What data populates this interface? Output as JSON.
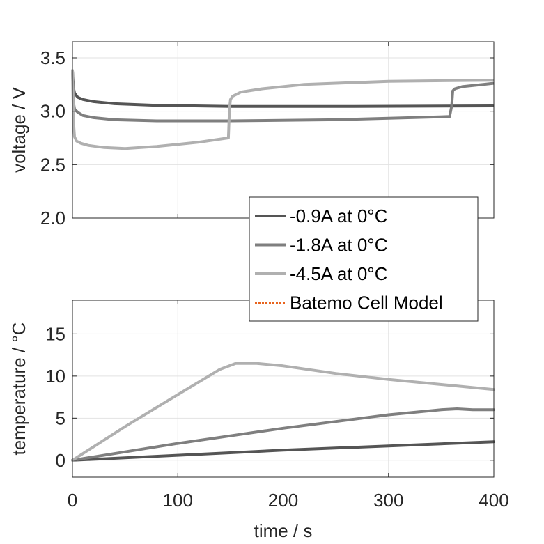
{
  "chart_data": [
    {
      "type": "line",
      "title": "",
      "xlabel": "",
      "ylabel": "voltage / V",
      "xlim": [
        0,
        400
      ],
      "ylim": [
        2.0,
        3.65
      ],
      "xticks": [
        0,
        100,
        200,
        300,
        400
      ],
      "yticks": [
        "2.0",
        "2.5",
        "3.0",
        "3.5"
      ],
      "ytick_values": [
        2.0,
        2.5,
        3.0,
        3.5
      ],
      "grid": true,
      "series": [
        {
          "name": "-0.9A at 0°C",
          "color": "#555555",
          "x": [
            0,
            1,
            2,
            5,
            10,
            20,
            40,
            80,
            150,
            250,
            399
          ],
          "y": [
            3.38,
            3.22,
            3.17,
            3.13,
            3.11,
            3.09,
            3.07,
            3.055,
            3.045,
            3.045,
            3.05
          ]
        },
        {
          "name": "-1.8A at 0°C",
          "color": "#7f7f7f",
          "x": [
            0,
            1,
            2,
            5,
            10,
            20,
            40,
            80,
            150,
            250,
            358,
            360,
            361,
            363,
            370,
            390,
            399
          ],
          "y": [
            3.38,
            3.08,
            3.02,
            2.99,
            2.96,
            2.94,
            2.92,
            2.91,
            2.91,
            2.92,
            2.95,
            3.05,
            3.19,
            3.21,
            3.23,
            3.25,
            3.26
          ]
        },
        {
          "name": "-4.5A at 0°C",
          "color": "#b0b0b0",
          "x": [
            0,
            1,
            2,
            4,
            8,
            15,
            30,
            50,
            80,
            120,
            148,
            149,
            150,
            152,
            160,
            180,
            220,
            300,
            399
          ],
          "y": [
            3.38,
            2.9,
            2.76,
            2.72,
            2.7,
            2.68,
            2.66,
            2.65,
            2.67,
            2.71,
            2.75,
            3.02,
            3.11,
            3.14,
            3.18,
            3.21,
            3.25,
            3.28,
            3.29
          ]
        }
      ]
    },
    {
      "type": "line",
      "title": "",
      "xlabel": "time / s",
      "ylabel": "temperature / °C",
      "xlim": [
        0,
        400
      ],
      "ylim": [
        -2,
        19
      ],
      "xticks": [
        0,
        100,
        200,
        300,
        400
      ],
      "yticks": [
        "0",
        "5",
        "10",
        "15"
      ],
      "ytick_values": [
        0,
        5,
        10,
        15
      ],
      "grid": true,
      "series": [
        {
          "name": "-0.9A at 0°C",
          "color": "#555555",
          "x": [
            0,
            100,
            200,
            300,
            400
          ],
          "y": [
            0,
            0.6,
            1.2,
            1.7,
            2.2
          ]
        },
        {
          "name": "-1.8A at 0°C",
          "color": "#7f7f7f",
          "x": [
            0,
            50,
            100,
            150,
            200,
            250,
            300,
            350,
            365,
            380,
            400
          ],
          "y": [
            0,
            1.0,
            2.0,
            2.9,
            3.8,
            4.6,
            5.4,
            6.0,
            6.1,
            6.0,
            6.0
          ]
        },
        {
          "name": "-4.5A at 0°C",
          "color": "#b0b0b0",
          "x": [
            0,
            50,
            100,
            140,
            155,
            175,
            200,
            250,
            300,
            350,
            400
          ],
          "y": [
            0,
            4.0,
            7.8,
            10.8,
            11.5,
            11.5,
            11.2,
            10.3,
            9.6,
            9.0,
            8.4
          ]
        }
      ]
    }
  ],
  "legend": {
    "placement": "center",
    "items": [
      {
        "label": "-0.9A at 0°C",
        "color": "#555555",
        "style": "solid"
      },
      {
        "label": "-1.8A at 0°C",
        "color": "#7f7f7f",
        "style": "solid"
      },
      {
        "label": "-4.5A at 0°C",
        "color": "#b0b0b0",
        "style": "solid"
      },
      {
        "label": "Batemo Cell Model",
        "color": "#e8641e",
        "style": "dotted"
      }
    ]
  }
}
